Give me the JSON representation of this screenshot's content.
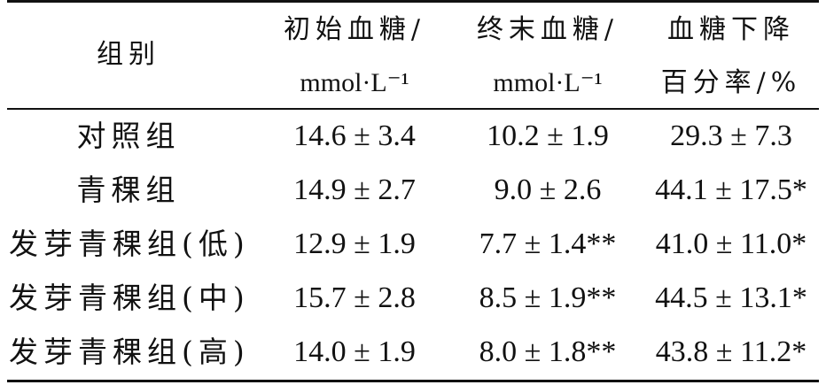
{
  "headers": {
    "group": "组别",
    "initial_line1": "初始血糖/",
    "initial_line2": "mmol·L⁻¹",
    "final_line1": "终末血糖/",
    "final_line2": "mmol·L⁻¹",
    "drop_line1": "血糖下降",
    "drop_line2": "百分率/%"
  },
  "rows": [
    {
      "group": "对照组",
      "initial": "14.6 ± 3.4",
      "final": "10.2 ± 1.9",
      "drop": "29.3 ± 7.3"
    },
    {
      "group": "青稞组",
      "initial": "14.9 ± 2.7",
      "final": "9.0 ± 2.6",
      "drop": "44.1 ± 17.5*"
    },
    {
      "group": "发芽青稞组(低)",
      "initial": "12.9 ± 1.9",
      "final": "7.7 ± 1.4**",
      "drop": "41.0 ± 11.0*"
    },
    {
      "group": "发芽青稞组(中)",
      "initial": "15.7 ± 2.8",
      "final": "8.5 ± 1.9**",
      "drop": "44.5 ± 13.1*"
    },
    {
      "group": "发芽青稞组(高)",
      "initial": "14.0 ± 1.9",
      "final": "8.0 ± 1.8**",
      "drop": "43.8 ± 11.2*"
    }
  ]
}
